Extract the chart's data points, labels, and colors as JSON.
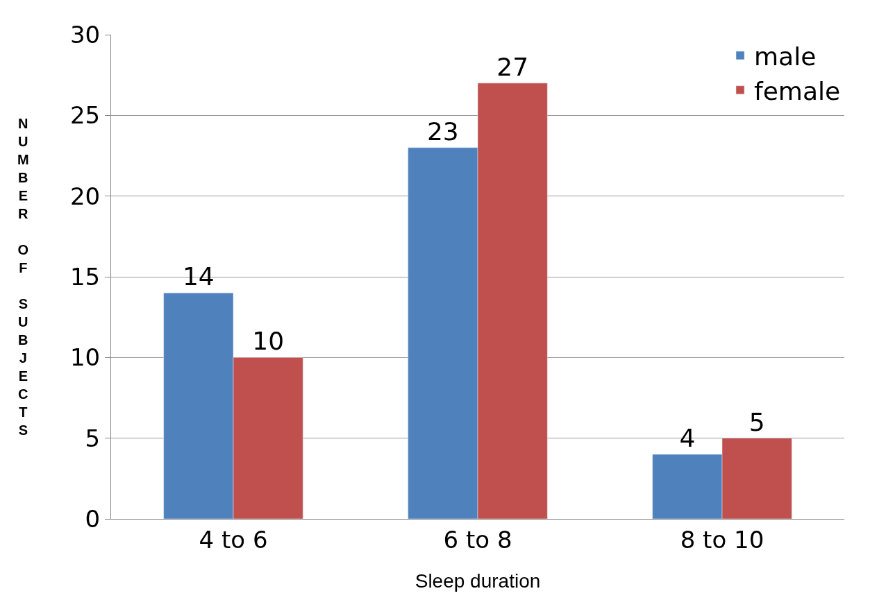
{
  "chart_data": {
    "type": "bar",
    "xlabel": "Sleep duration",
    "ylabel": "NUMBER OF SUBJECTS",
    "categories": [
      "4 to 6",
      "6 to 8",
      "8 to 10"
    ],
    "series": [
      {
        "name": "male",
        "color": "#4f81bd",
        "values": [
          14,
          23,
          4
        ]
      },
      {
        "name": "female",
        "color": "#c0504d",
        "values": [
          10,
          27,
          5
        ]
      }
    ],
    "ylim": [
      0,
      30
    ],
    "yticks": [
      0,
      5,
      10,
      15,
      20,
      25,
      30
    ],
    "grid": "y",
    "legend": "top right",
    "data_labels": true
  }
}
